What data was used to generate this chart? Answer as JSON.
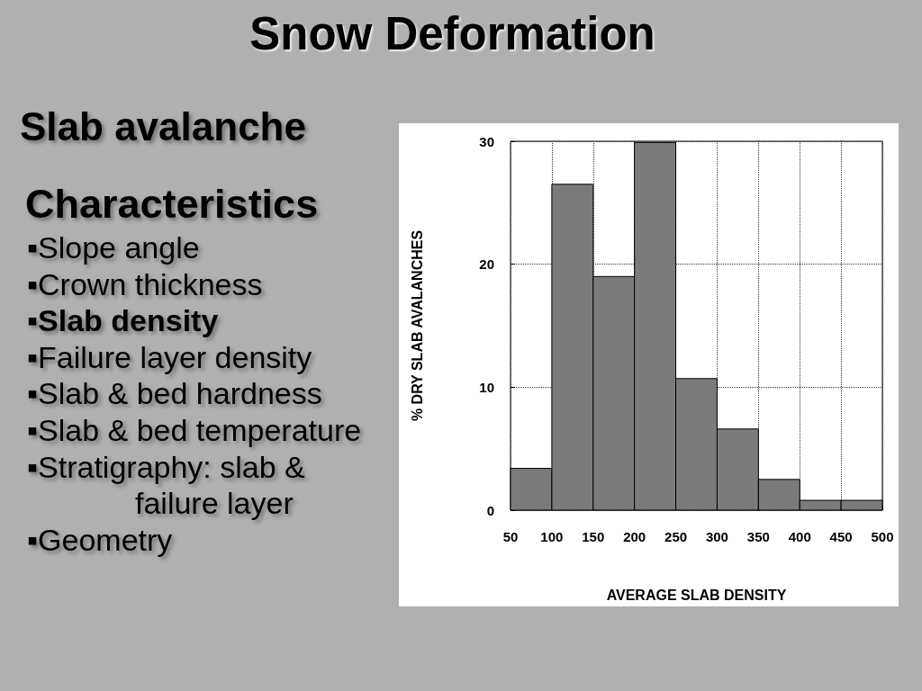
{
  "chart_data": [
    {
      "type": "other",
      "title": "Snow Deformation",
      "subtitle": "Slab avalanche",
      "annotations": [
        "Characteristics",
        "▪Slope angle",
        "▪Crown thickness",
        "▪Slab density",
        "▪Failure layer density",
        "▪Slab & bed hardness",
        "▪Slab & bed temperature",
        "▪Stratigraphy: slab & failure layer",
        "▪Geometry"
      ]
    },
    {
      "type": "histogram",
      "xlabel": "AVERAGE SLAB DENSITY",
      "ylabel": "% DRY SLAB AVALANCHES",
      "bins": [
        50,
        100,
        150,
        200,
        250,
        300,
        350,
        400,
        450,
        500
      ],
      "values": [
        3.4,
        26.5,
        19.0,
        29.9,
        10.7,
        6.6,
        2.5,
        0.8,
        0.8
      ],
      "color": "#7b7b7b",
      "xlim": [
        50,
        500
      ],
      "xticks": [
        50,
        100,
        150,
        200,
        250,
        300,
        350,
        400,
        450,
        500
      ],
      "ylim": [
        0,
        30
      ],
      "yticks": [
        0,
        10,
        20,
        30
      ],
      "grid": true
    }
  ]
}
